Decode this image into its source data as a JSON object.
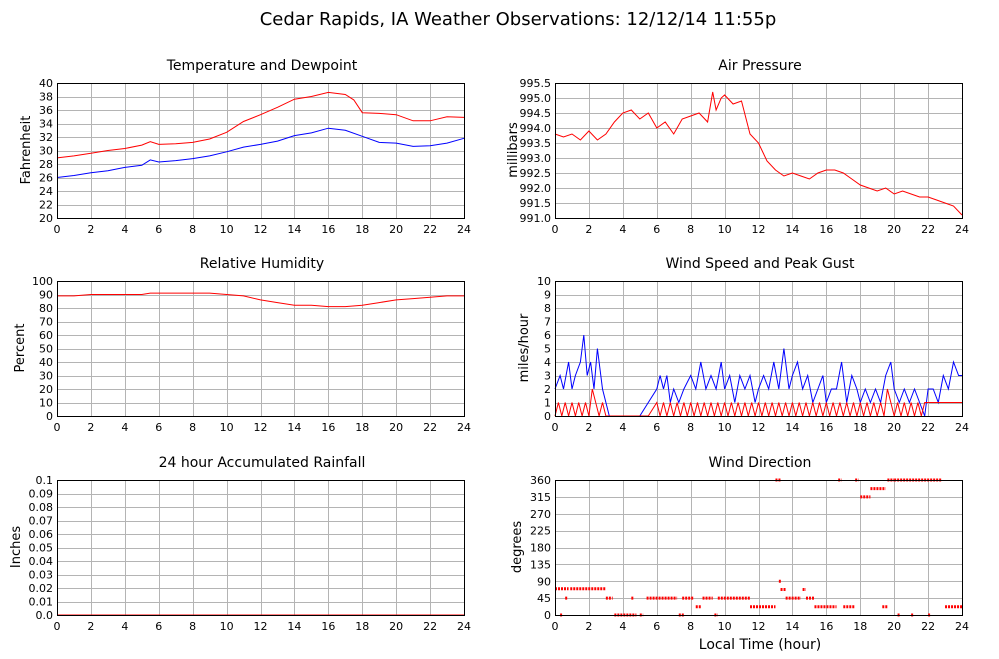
{
  "title": "Cedar Rapids, IA Weather Observations: 12/12/14 11:55p",
  "xlabel": "Local Time (hour)",
  "colors": {
    "red": "#ff0000",
    "blue": "#0000ff"
  },
  "chart_data": [
    {
      "id": "temp",
      "type": "line",
      "title": "Temperature and Dewpoint",
      "ylabel": "Fahrenheit",
      "xlim": [
        0,
        24
      ],
      "ylim": [
        20,
        40
      ],
      "xticks": [
        "0",
        "2",
        "4",
        "6",
        "8",
        "10",
        "12",
        "14",
        "16",
        "18",
        "20",
        "22",
        "24"
      ],
      "yticks": [
        "20",
        "22",
        "24",
        "26",
        "28",
        "30",
        "32",
        "34",
        "36",
        "38",
        "40"
      ],
      "series": [
        {
          "color": "#ff0000",
          "x": [
            0,
            1,
            2,
            3,
            4,
            5,
            5.5,
            6,
            7,
            8,
            9,
            10,
            11,
            12,
            13,
            14,
            15,
            16,
            17,
            17.5,
            18,
            19,
            20,
            21,
            22,
            23,
            24
          ],
          "y": [
            28.9,
            29.2,
            29.6,
            30,
            30.3,
            30.8,
            31.3,
            30.9,
            31,
            31.2,
            31.7,
            32.7,
            34.3,
            35.3,
            36.4,
            37.6,
            38,
            38.6,
            38.3,
            37.5,
            35.6,
            35.5,
            35.3,
            34.4,
            34.4,
            35,
            34.9
          ]
        },
        {
          "color": "#0000ff",
          "x": [
            0,
            1,
            2,
            3,
            4,
            5,
            5.5,
            6,
            7,
            8,
            9,
            10,
            11,
            12,
            13,
            14,
            15,
            16,
            17,
            18,
            19,
            20,
            21,
            22,
            23,
            24
          ],
          "y": [
            26,
            26.3,
            26.7,
            27,
            27.5,
            27.8,
            28.6,
            28.3,
            28.5,
            28.8,
            29.2,
            29.8,
            30.5,
            30.9,
            31.4,
            32.2,
            32.6,
            33.3,
            33,
            32.1,
            31.2,
            31.1,
            30.6,
            30.7,
            31.1,
            31.8
          ]
        }
      ]
    },
    {
      "id": "pressure",
      "type": "line",
      "title": "Air Pressure",
      "ylabel": "millibars",
      "xlim": [
        0,
        24
      ],
      "ylim": [
        991.0,
        995.5
      ],
      "xticks": [
        "0",
        "2",
        "4",
        "6",
        "8",
        "10",
        "12",
        "14",
        "16",
        "18",
        "20",
        "22",
        "24"
      ],
      "yticks": [
        "991.0",
        "991.5",
        "992.0",
        "992.5",
        "993.0",
        "993.5",
        "994.0",
        "994.5",
        "995.0",
        "995.5"
      ],
      "series": [
        {
          "color": "#ff0000",
          "x": [
            0,
            0.5,
            1,
            1.5,
            2,
            2.5,
            3,
            3.5,
            4,
            4.5,
            5,
            5.5,
            6,
            6.5,
            7,
            7.5,
            8,
            8.5,
            9,
            9.3,
            9.5,
            9.8,
            10,
            10.5,
            11,
            11.5,
            12,
            12.5,
            13,
            13.5,
            14,
            14.5,
            15,
            15.5,
            16,
            16.5,
            17,
            17.5,
            18,
            18.5,
            19,
            19.5,
            20,
            20.5,
            21,
            21.5,
            22,
            22.5,
            23,
            23.5,
            24
          ],
          "y": [
            993.8,
            993.7,
            993.8,
            993.6,
            993.9,
            993.6,
            993.8,
            994.2,
            994.5,
            994.6,
            994.3,
            994.5,
            994.0,
            994.2,
            993.8,
            994.3,
            994.4,
            994.5,
            994.2,
            995.2,
            994.6,
            995.0,
            995.1,
            994.8,
            994.9,
            993.8,
            993.5,
            992.9,
            992.6,
            992.4,
            992.5,
            992.4,
            992.3,
            992.5,
            992.6,
            992.6,
            992.5,
            992.3,
            992.1,
            992.0,
            991.9,
            992.0,
            991.8,
            991.9,
            991.8,
            991.7,
            991.7,
            991.6,
            991.5,
            991.4,
            991.1
          ]
        }
      ]
    },
    {
      "id": "rh",
      "type": "line",
      "title": "Relative Humidity",
      "ylabel": "Percent",
      "xlim": [
        0,
        24
      ],
      "ylim": [
        0,
        100
      ],
      "xticks": [
        "0",
        "2",
        "4",
        "6",
        "8",
        "10",
        "12",
        "14",
        "16",
        "18",
        "20",
        "22",
        "24"
      ],
      "yticks": [
        "0",
        "10",
        "20",
        "30",
        "40",
        "50",
        "60",
        "70",
        "80",
        "90",
        "100"
      ],
      "series": [
        {
          "color": "#ff0000",
          "x": [
            0,
            1,
            2,
            3,
            4,
            5,
            5.5,
            6,
            7,
            8,
            9,
            10,
            11,
            12,
            13,
            14,
            15,
            16,
            17,
            18,
            19,
            20,
            21,
            22,
            23,
            24
          ],
          "y": [
            89,
            89,
            90,
            90,
            90,
            90,
            91,
            91,
            91,
            91,
            91,
            90,
            89,
            86,
            84,
            82,
            82,
            81,
            81,
            82,
            84,
            86,
            87,
            88,
            89,
            89
          ]
        }
      ]
    },
    {
      "id": "wind",
      "type": "line",
      "title": "Wind Speed and Peak Gust",
      "ylabel": "miles/hour",
      "xlim": [
        0,
        24
      ],
      "ylim": [
        0,
        10
      ],
      "xticks": [
        "0",
        "2",
        "4",
        "6",
        "8",
        "10",
        "12",
        "14",
        "16",
        "18",
        "20",
        "22",
        "24"
      ],
      "yticks": [
        "0",
        "1",
        "2",
        "3",
        "4",
        "5",
        "6",
        "7",
        "8",
        "9",
        "10"
      ],
      "series": [
        {
          "color": "#0000ff",
          "x": [
            0,
            0.3,
            0.5,
            0.8,
            1,
            1.2,
            1.5,
            1.7,
            1.9,
            2.1,
            2.3,
            2.5,
            2.8,
            3,
            3.2,
            3.5,
            4,
            4.5,
            5,
            5.5,
            6,
            6.2,
            6.4,
            6.6,
            6.8,
            7,
            7.3,
            7.6,
            8,
            8.3,
            8.6,
            8.9,
            9.2,
            9.5,
            9.8,
            10,
            10.3,
            10.6,
            10.9,
            11.2,
            11.5,
            11.8,
            12,
            12.3,
            12.6,
            12.9,
            13.2,
            13.5,
            13.8,
            14,
            14.3,
            14.6,
            14.9,
            15.2,
            15.5,
            15.8,
            16,
            16.3,
            16.6,
            16.9,
            17.2,
            17.5,
            17.8,
            18,
            18.3,
            18.6,
            18.9,
            19.2,
            19.5,
            19.8,
            20,
            20.3,
            20.6,
            20.9,
            21.2,
            21.5,
            21.8,
            22,
            22.3,
            22.6,
            22.9,
            23.2,
            23.5,
            23.8,
            24
          ],
          "y": [
            2,
            3,
            2,
            4,
            2,
            3,
            4,
            6,
            3,
            4,
            2,
            5,
            2,
            1,
            0,
            0,
            0,
            0,
            0,
            1,
            2,
            3,
            2,
            3,
            1,
            2,
            1,
            2,
            3,
            2,
            4,
            2,
            3,
            2,
            4,
            2,
            3,
            1,
            3,
            2,
            3,
            1,
            2,
            3,
            2,
            4,
            2,
            5,
            2,
            3,
            4,
            2,
            3,
            1,
            2,
            3,
            1,
            2,
            2,
            4,
            1,
            3,
            2,
            1,
            2,
            1,
            2,
            1,
            3,
            4,
            2,
            1,
            2,
            1,
            2,
            1,
            0,
            2,
            2,
            1,
            3,
            2,
            4,
            3,
            3
          ]
        },
        {
          "color": "#ff0000",
          "x": [
            0,
            0.2,
            0.4,
            0.6,
            0.8,
            1,
            1.2,
            1.4,
            1.6,
            1.8,
            2,
            2.2,
            2.4,
            2.6,
            2.8,
            3,
            3.5,
            4,
            4.5,
            5,
            5.5,
            6,
            6.2,
            6.4,
            6.6,
            6.8,
            7,
            7.2,
            7.4,
            7.6,
            7.8,
            8,
            8.2,
            8.4,
            8.6,
            8.8,
            9,
            9.2,
            9.4,
            9.6,
            9.8,
            10,
            10.2,
            10.4,
            10.6,
            10.8,
            11,
            11.2,
            11.4,
            11.6,
            11.8,
            12,
            12.2,
            12.4,
            12.6,
            12.8,
            13,
            13.2,
            13.4,
            13.6,
            13.8,
            14,
            14.2,
            14.4,
            14.6,
            14.8,
            15,
            15.2,
            15.4,
            15.6,
            15.8,
            16,
            16.2,
            16.4,
            16.6,
            16.8,
            17,
            17.2,
            17.4,
            17.6,
            17.8,
            18,
            18.2,
            18.4,
            18.6,
            18.8,
            19,
            19.2,
            19.4,
            19.6,
            19.8,
            20,
            20.2,
            20.4,
            20.6,
            20.8,
            21,
            21.2,
            21.4,
            21.6,
            21.8,
            22,
            22.5,
            23,
            23.5,
            24
          ],
          "y": [
            0,
            1,
            0,
            1,
            0,
            1,
            0,
            1,
            0,
            1,
            0,
            2,
            1,
            0,
            1,
            0,
            0,
            0,
            0,
            0,
            0,
            1,
            0,
            1,
            0,
            1,
            0,
            1,
            0,
            1,
            0,
            1,
            0,
            1,
            0,
            1,
            0,
            1,
            0,
            1,
            0,
            1,
            0,
            1,
            0,
            1,
            0,
            1,
            0,
            1,
            0,
            1,
            0,
            1,
            0,
            1,
            0,
            1,
            0,
            1,
            0,
            1,
            0,
            1,
            0,
            1,
            0,
            1,
            0,
            1,
            0,
            1,
            0,
            1,
            0,
            1,
            0,
            1,
            0,
            1,
            0,
            1,
            0,
            1,
            0,
            1,
            0,
            1,
            0,
            2,
            1,
            0,
            1,
            0,
            1,
            0,
            1,
            0,
            1,
            0,
            1,
            1,
            1,
            1,
            1,
            1
          ]
        }
      ]
    },
    {
      "id": "rain",
      "type": "line",
      "title": "24 hour Accumulated Rainfall",
      "ylabel": "Inches",
      "xlim": [
        0,
        24
      ],
      "ylim": [
        0,
        0.1
      ],
      "xticks": [
        "0",
        "2",
        "4",
        "6",
        "8",
        "10",
        "12",
        "14",
        "16",
        "18",
        "20",
        "22",
        "24"
      ],
      "yticks": [
        "0.0",
        "0.01",
        "0.02",
        "0.03",
        "0.04",
        "0.05",
        "0.06",
        "0.07",
        "0.08",
        "0.09",
        "0.1"
      ],
      "series": [
        {
          "color": "#ff0000",
          "x": [
            0,
            24
          ],
          "y": [
            0,
            0
          ]
        }
      ]
    },
    {
      "id": "winddir",
      "type": "scatter",
      "title": "Wind Direction",
      "ylabel": "degrees",
      "xlim": [
        0,
        24
      ],
      "ylim": [
        0,
        360
      ],
      "xticks": [
        "0",
        "2",
        "4",
        "6",
        "8",
        "10",
        "12",
        "14",
        "16",
        "18",
        "20",
        "22",
        "24"
      ],
      "yticks": [
        "0",
        "45",
        "90",
        "135",
        "180",
        "225",
        "270",
        "315",
        "360"
      ],
      "segments": [
        {
          "x0": 0,
          "x1": 0.8,
          "y": 70
        },
        {
          "x0": 0.3,
          "x1": 0.4,
          "y": 0
        },
        {
          "x0": 0.6,
          "x1": 0.7,
          "y": 45
        },
        {
          "x0": 0.9,
          "x1": 3.0,
          "y": 70
        },
        {
          "x0": 3.0,
          "x1": 3.4,
          "y": 45
        },
        {
          "x0": 3.5,
          "x1": 4.8,
          "y": 0
        },
        {
          "x0": 4.5,
          "x1": 4.6,
          "y": 45
        },
        {
          "x0": 5.0,
          "x1": 5.2,
          "y": 0
        },
        {
          "x0": 5.4,
          "x1": 7.2,
          "y": 45
        },
        {
          "x0": 7.3,
          "x1": 7.6,
          "y": 0
        },
        {
          "x0": 7.5,
          "x1": 8.2,
          "y": 45
        },
        {
          "x0": 8.3,
          "x1": 8.6,
          "y": 22
        },
        {
          "x0": 8.7,
          "x1": 9.3,
          "y": 45
        },
        {
          "x0": 9.4,
          "x1": 9.6,
          "y": 0
        },
        {
          "x0": 9.6,
          "x1": 11.5,
          "y": 45
        },
        {
          "x0": 11.5,
          "x1": 13.0,
          "y": 22
        },
        {
          "x0": 13.0,
          "x1": 13.3,
          "y": 360
        },
        {
          "x0": 13.2,
          "x1": 13.3,
          "y": 90
        },
        {
          "x0": 13.3,
          "x1": 13.6,
          "y": 68
        },
        {
          "x0": 13.6,
          "x1": 14.5,
          "y": 45
        },
        {
          "x0": 14.6,
          "x1": 14.8,
          "y": 68
        },
        {
          "x0": 14.8,
          "x1": 15.3,
          "y": 45
        },
        {
          "x0": 15.3,
          "x1": 16.6,
          "y": 22
        },
        {
          "x0": 16.7,
          "x1": 16.9,
          "y": 360
        },
        {
          "x0": 17.0,
          "x1": 17.7,
          "y": 22
        },
        {
          "x0": 17.7,
          "x1": 17.9,
          "y": 360
        },
        {
          "x0": 18.0,
          "x1": 18.6,
          "y": 315
        },
        {
          "x0": 18.6,
          "x1": 19.5,
          "y": 337
        },
        {
          "x0": 19.3,
          "x1": 19.6,
          "y": 22
        },
        {
          "x0": 19.6,
          "x1": 20.0,
          "y": 360
        },
        {
          "x0": 20.0,
          "x1": 22.8,
          "y": 360
        },
        {
          "x0": 20.2,
          "x1": 20.3,
          "y": 0
        },
        {
          "x0": 21.0,
          "x1": 21.1,
          "y": 0
        },
        {
          "x0": 22.0,
          "x1": 22.1,
          "y": 0
        },
        {
          "x0": 23.0,
          "x1": 24.0,
          "y": 22
        }
      ]
    }
  ]
}
